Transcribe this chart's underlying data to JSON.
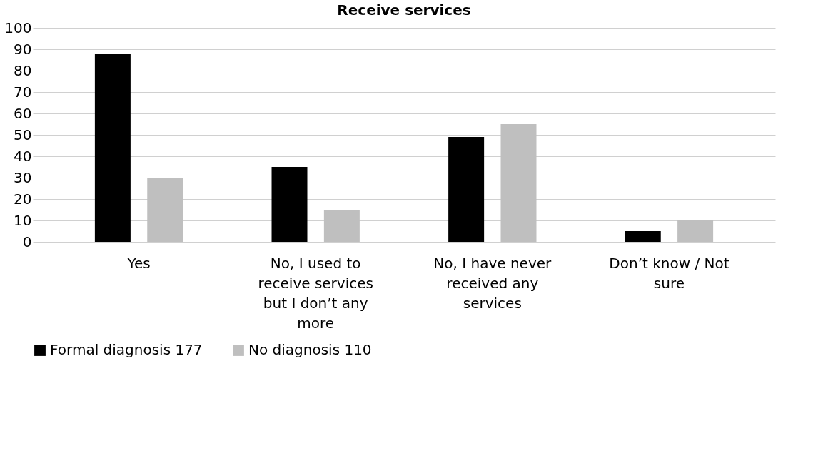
{
  "chart_data": {
    "type": "bar",
    "title": "Receive services",
    "categories": [
      "Yes",
      "No, I used to receive services but I don’t any more",
      "No, I have never received any services",
      "Don’t know / Not sure"
    ],
    "series": [
      {
        "name": "Formal diagnosis 177",
        "color": "#000000",
        "values": [
          88,
          35,
          49,
          5
        ]
      },
      {
        "name": "No diagnosis 110",
        "color": "#bfbfbf",
        "values": [
          30,
          15,
          55,
          10
        ]
      }
    ],
    "ylim": [
      0,
      100
    ],
    "yticks": [
      0,
      10,
      20,
      30,
      40,
      50,
      60,
      70,
      80,
      90,
      100
    ],
    "grid": true,
    "legend": "bottom"
  }
}
